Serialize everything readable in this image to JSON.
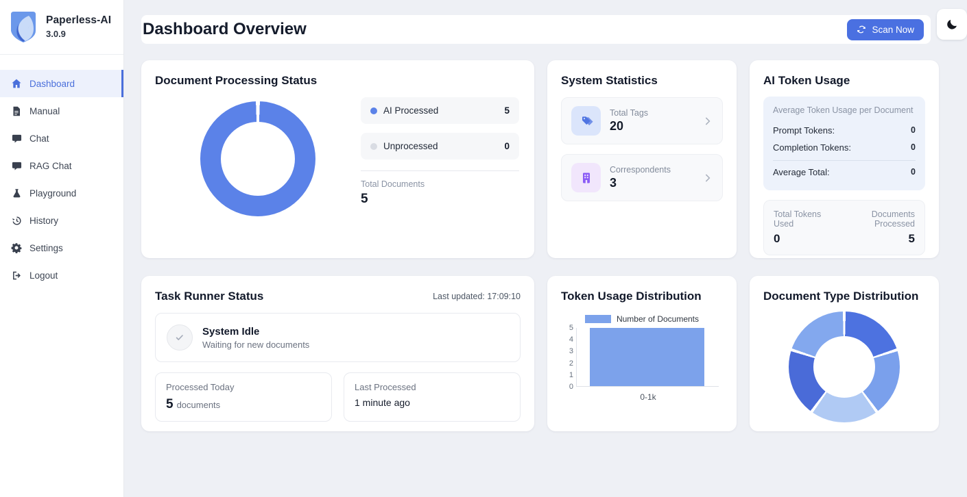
{
  "app": {
    "name": "Paperless-AI",
    "version": "3.0.9",
    "logo_icon": "leaf-shield-icon"
  },
  "sidebar": {
    "items": [
      {
        "label": "Dashboard",
        "icon": "home-icon",
        "active": true
      },
      {
        "label": "Manual",
        "icon": "document-icon",
        "active": false
      },
      {
        "label": "Chat",
        "icon": "chat-bubble-icon",
        "active": false
      },
      {
        "label": "RAG Chat",
        "icon": "chat-bubble-icon",
        "active": false
      },
      {
        "label": "Playground",
        "icon": "flask-icon",
        "active": false
      },
      {
        "label": "History",
        "icon": "history-icon",
        "active": false
      },
      {
        "label": "Settings",
        "icon": "gear-icon",
        "active": false
      },
      {
        "label": "Logout",
        "icon": "logout-icon",
        "active": false
      }
    ]
  },
  "header": {
    "title": "Dashboard Overview",
    "scan_button_label": "Scan Now",
    "scan_icon": "refresh-icon",
    "theme_toggle_icon": "moon-icon"
  },
  "cards": {
    "doc_processing": {
      "title": "Document Processing Status",
      "legend": [
        {
          "label": "AI Processed",
          "value": "5",
          "color": "#5b82e8"
        },
        {
          "label": "Unprocessed",
          "value": "0",
          "color": "#d9dce3"
        }
      ],
      "total_label": "Total Documents",
      "total_value": "5"
    },
    "system_stats": {
      "title": "System Statistics",
      "rows": [
        {
          "label": "Total Tags",
          "value": "20",
          "icon": "tags-icon",
          "icon_color": "#4f74e2",
          "icon_bg": "#dbe5fb"
        },
        {
          "label": "Correspondents",
          "value": "3",
          "icon": "building-icon",
          "icon_color": "#8b5cf6",
          "icon_bg": "#f1e6fc"
        }
      ]
    },
    "token_usage": {
      "title": "AI Token Usage",
      "avg_box": {
        "heading": "Average Token Usage per Document",
        "rows": [
          {
            "label": "Prompt Tokens:",
            "value": "0"
          },
          {
            "label": "Completion Tokens:",
            "value": "0"
          }
        ],
        "total_row": {
          "label": "Average Total:",
          "value": "0"
        }
      },
      "totals_box": {
        "left_label": "Total Tokens Used",
        "left_value": "0",
        "right_label": "Documents Processed",
        "right_value": "5"
      }
    },
    "task_runner": {
      "title": "Task Runner Status",
      "last_updated": "Last updated: 17:09:10",
      "status_title": "System Idle",
      "status_subtitle": "Waiting for new documents",
      "status_icon": "check-icon",
      "processed_today_label": "Processed Today",
      "processed_today_value": "5",
      "processed_today_unit": "documents",
      "last_processed_label": "Last Processed",
      "last_processed_value": "1 minute ago"
    },
    "token_distribution": {
      "title": "Token Usage Distribution"
    },
    "doc_type_distribution": {
      "title": "Document Type Distribution"
    }
  },
  "chart_data": [
    {
      "type": "doughnut",
      "title": "Document Processing Status",
      "labels": [
        "AI Processed",
        "Unprocessed"
      ],
      "values": [
        5,
        0
      ],
      "colors": [
        "#5b82e8",
        "#d9dce3"
      ],
      "total_label": "Total Documents",
      "total": 5,
      "legend_position": "right"
    },
    {
      "type": "bar",
      "title": "Token Usage Distribution",
      "legend": "Number of Documents",
      "legend_position": "top",
      "categories": [
        "0-1k"
      ],
      "values": [
        5
      ],
      "xlabel": "",
      "ylabel": "",
      "ylim": [
        0,
        5
      ],
      "yticks": [
        0,
        1,
        2,
        3,
        4,
        5
      ],
      "grid": false,
      "bar_color": "#7ca2eb"
    },
    {
      "type": "doughnut",
      "title": "Document Type Distribution",
      "labels": [
        "",
        "",
        "",
        "",
        ""
      ],
      "values": [
        1,
        1,
        1,
        1,
        1
      ],
      "colors": [
        "#4d72e0",
        "#7aa0ec",
        "#b0caf4",
        "#4a6bd8",
        "#83a8ee"
      ],
      "legend_position": "none"
    }
  ],
  "colors": {
    "accent": "#4a70e1",
    "active_nav": "#4a6fdb",
    "page_bg": "#eef0f5",
    "card_bg": "#ffffff"
  }
}
